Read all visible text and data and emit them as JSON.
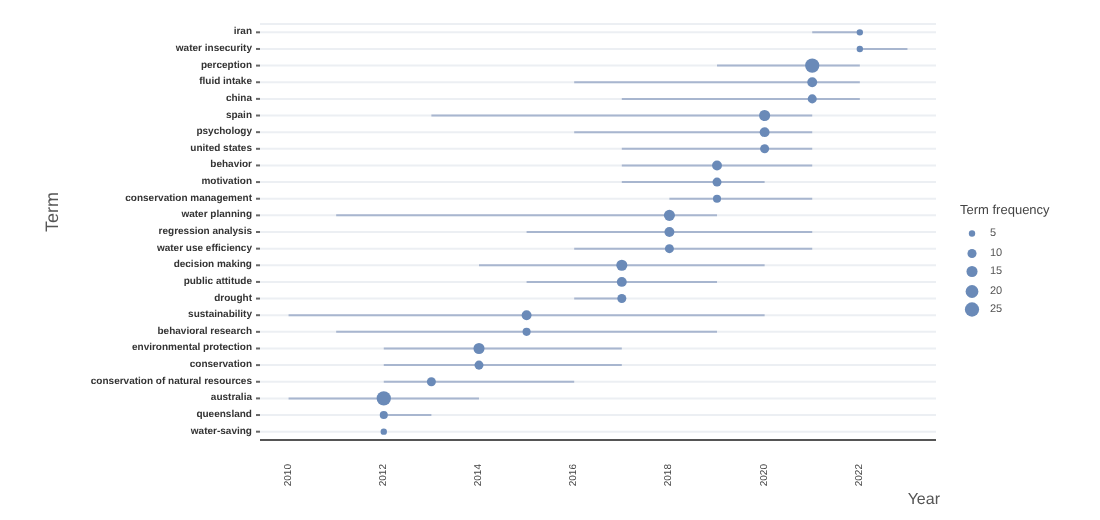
{
  "chart_data": {
    "type": "bubble",
    "orientation": "horizontal",
    "ylabel": "Term",
    "xlabel": "Year",
    "legend_title": "Term frequency",
    "grid": "y",
    "color": "#6a8ab8",
    "categories": [
      "iran",
      "water insecurity",
      "perception",
      "fluid intake",
      "china",
      "spain",
      "psychology",
      "united states",
      "behavior",
      "motivation",
      "conservation management",
      "water planning",
      "regression analysis",
      "water use efficiency",
      "decision making",
      "public attitude",
      "drought",
      "sustainability",
      "behavioral research",
      "environmental protection",
      "conservation",
      "conservation of natural resources",
      "australia",
      "queensland",
      "water-saving"
    ],
    "values": [
      2022,
      2022,
      2021,
      2021,
      2021,
      2020,
      2020,
      2020,
      2019,
      2019,
      2019,
      2018,
      2018,
      2018,
      2017,
      2017,
      2017,
      2015,
      2015,
      2014,
      2014,
      2013,
      2012,
      2012,
      2012
    ],
    "errors": [
      [
        2021,
        2022
      ],
      [
        2022,
        2023
      ],
      [
        2019,
        2022
      ],
      [
        2016,
        2022
      ],
      [
        2017,
        2022
      ],
      [
        2013,
        2021
      ],
      [
        2016,
        2021
      ],
      [
        2017,
        2021
      ],
      [
        2017,
        2021
      ],
      [
        2017,
        2020
      ],
      [
        2018,
        2021
      ],
      [
        2011,
        2019
      ],
      [
        2015,
        2021
      ],
      [
        2016,
        2021
      ],
      [
        2014,
        2020
      ],
      [
        2015,
        2019
      ],
      [
        2016,
        2017
      ],
      [
        2010,
        2020
      ],
      [
        2011,
        2019
      ],
      [
        2012,
        2017
      ],
      [
        2012,
        2017
      ],
      [
        2012,
        2016
      ],
      [
        2010,
        2014
      ],
      [
        2012,
        2013
      ],
      null
    ],
    "sizes": [
      5,
      5,
      25,
      12,
      10,
      15,
      12,
      10,
      12,
      10,
      8,
      15,
      12,
      10,
      15,
      12,
      10,
      12,
      8,
      15,
      10,
      10,
      25,
      8,
      5
    ],
    "size_legend": [
      5,
      10,
      15,
      20,
      25
    ],
    "xlim": [
      2009.4,
      2023.6
    ],
    "xticks": [
      2010,
      2012,
      2014,
      2016,
      2018,
      2020,
      2022
    ]
  }
}
